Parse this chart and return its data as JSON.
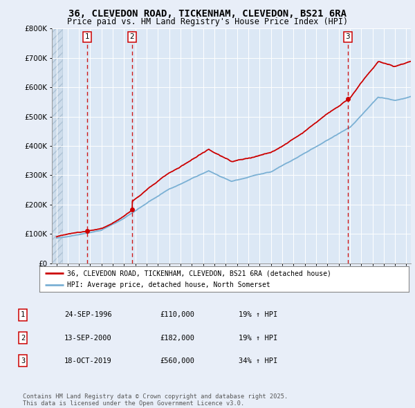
{
  "title": "36, CLEVEDON ROAD, TICKENHAM, CLEVEDON, BS21 6RA",
  "subtitle": "Price paid vs. HM Land Registry's House Price Index (HPI)",
  "title_fontsize": 10,
  "subtitle_fontsize": 8.5,
  "background_color": "#e8eef8",
  "plot_bg_color": "#dce8f5",
  "grid_color": "#ffffff",
  "red_color": "#cc0000",
  "blue_color": "#7ab0d4",
  "sale_dates_year": [
    1996.73,
    2000.71,
    2019.8
  ],
  "sale_prices": [
    110000,
    182000,
    560000
  ],
  "sale_labels": [
    "1",
    "2",
    "3"
  ],
  "legend_line1": "36, CLEVEDON ROAD, TICKENHAM, CLEVEDON, BS21 6RA (detached house)",
  "legend_line2": "HPI: Average price, detached house, North Somerset",
  "table_rows": [
    [
      "1",
      "24-SEP-1996",
      "£110,000",
      "19% ↑ HPI"
    ],
    [
      "2",
      "13-SEP-2000",
      "£182,000",
      "19% ↑ HPI"
    ],
    [
      "3",
      "18-OCT-2019",
      "£560,000",
      "34% ↑ HPI"
    ]
  ],
  "footer": "Contains HM Land Registry data © Crown copyright and database right 2025.\nThis data is licensed under the Open Government Licence v3.0.",
  "ylim": [
    0,
    800000
  ],
  "yticks": [
    0,
    100000,
    200000,
    300000,
    400000,
    500000,
    600000,
    700000,
    800000
  ],
  "ytick_labels": [
    "£0",
    "£100K",
    "£200K",
    "£300K",
    "£400K",
    "£500K",
    "£600K",
    "£700K",
    "£800K"
  ],
  "xlim_start": 1993.6,
  "xlim_end": 2025.4,
  "hatch_end_year": 1994.5
}
